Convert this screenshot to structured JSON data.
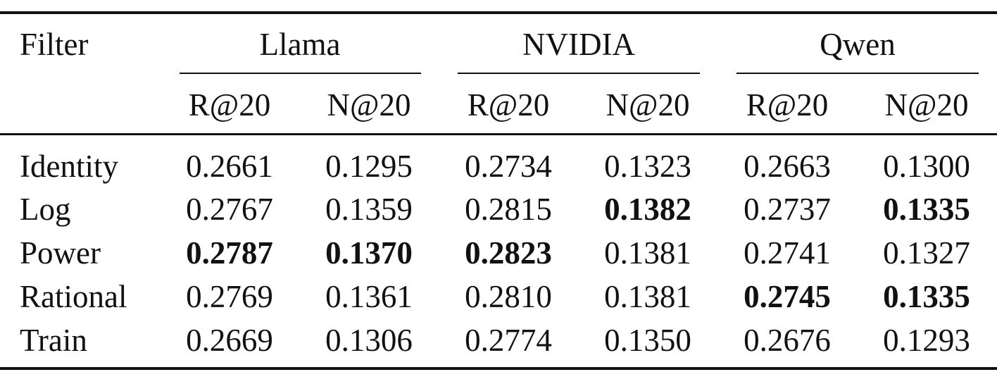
{
  "table": {
    "filter_header": "Filter",
    "groups": [
      {
        "name": "Llama",
        "metrics": [
          "R@20",
          "N@20"
        ]
      },
      {
        "name": "NVIDIA",
        "metrics": [
          "R@20",
          "N@20"
        ]
      },
      {
        "name": "Qwen",
        "metrics": [
          "R@20",
          "N@20"
        ]
      }
    ],
    "rows": [
      {
        "filter": "Identity",
        "values": [
          "0.2661",
          "0.1295",
          "0.2734",
          "0.1323",
          "0.2663",
          "0.1300"
        ],
        "bold": [
          false,
          false,
          false,
          false,
          false,
          false
        ]
      },
      {
        "filter": "Log",
        "values": [
          "0.2767",
          "0.1359",
          "0.2815",
          "0.1382",
          "0.2737",
          "0.1335"
        ],
        "bold": [
          false,
          false,
          false,
          true,
          false,
          true
        ]
      },
      {
        "filter": "Power",
        "values": [
          "0.2787",
          "0.1370",
          "0.2823",
          "0.1381",
          "0.2741",
          "0.1327"
        ],
        "bold": [
          true,
          true,
          true,
          false,
          false,
          false
        ]
      },
      {
        "filter": "Rational",
        "values": [
          "0.2769",
          "0.1361",
          "0.2810",
          "0.1381",
          "0.2745",
          "0.1335"
        ],
        "bold": [
          false,
          false,
          false,
          false,
          true,
          true
        ]
      },
      {
        "filter": "Train",
        "values": [
          "0.2669",
          "0.1306",
          "0.2774",
          "0.1350",
          "0.2676",
          "0.1293"
        ],
        "bold": [
          false,
          false,
          false,
          false,
          false,
          false
        ]
      }
    ]
  }
}
